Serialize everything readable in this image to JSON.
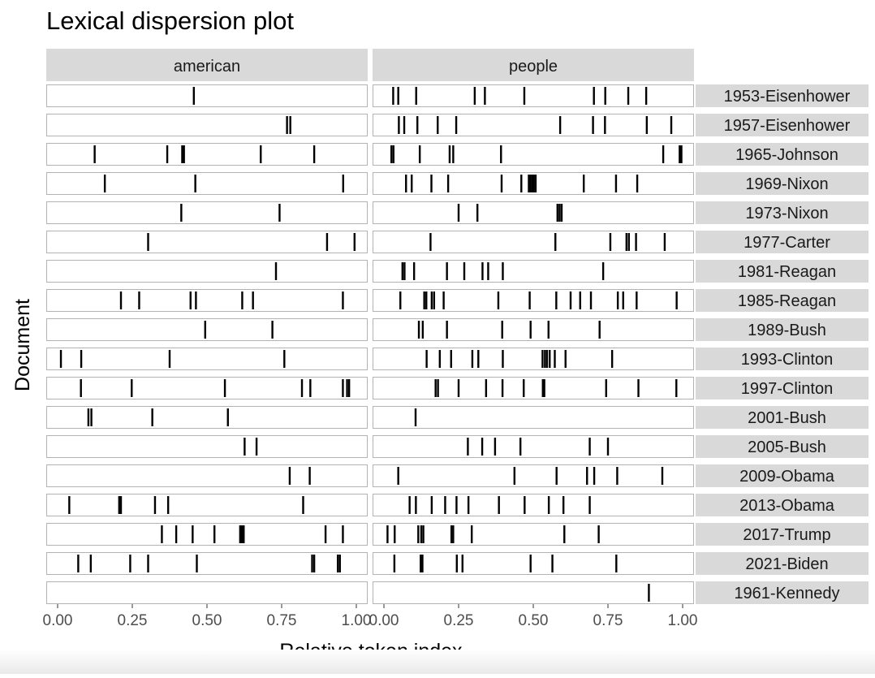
{
  "chart_data": {
    "type": "dispersion",
    "title": "Lexical dispersion plot",
    "xlabel": "Relative token index",
    "ylabel": "Document",
    "xlim": [
      0,
      1
    ],
    "x_ticks": [
      "0.00",
      "0.25",
      "0.50",
      "0.75",
      "1.00"
    ],
    "grid": false,
    "facets": [
      "american",
      "people"
    ],
    "documents": [
      {
        "name": "1953-Eisenhower",
        "american": [
          0.456
        ],
        "people": [
          0.031,
          0.048,
          0.108,
          0.304,
          0.338,
          0.47,
          0.703,
          0.741,
          0.818,
          0.878
        ]
      },
      {
        "name": "1957-Eisenhower",
        "american": [
          0.768,
          0.779
        ],
        "people": [
          0.05,
          0.068,
          0.112,
          0.18,
          0.242,
          0.59,
          0.7,
          0.74,
          0.88,
          0.962
        ]
      },
      {
        "name": "1965-Johnson",
        "american": [
          0.124,
          0.367,
          0.417,
          0.423,
          0.68,
          0.859
        ],
        "people": [
          0.025,
          0.032,
          0.12,
          0.22,
          0.232,
          0.392,
          0.935,
          0.99,
          0.996
        ]
      },
      {
        "name": "1969-Nixon",
        "american": [
          0.158,
          0.461,
          0.956
        ],
        "people": [
          0.074,
          0.093,
          0.159,
          0.215,
          0.394,
          0.46,
          0.485,
          0.491,
          0.497,
          0.502,
          0.508,
          0.669,
          0.777,
          0.848
        ]
      },
      {
        "name": "1973-Nixon",
        "american": [
          0.414,
          0.743
        ],
        "people": [
          0.25,
          0.313,
          0.581,
          0.588,
          0.595
        ]
      },
      {
        "name": "1977-Carter",
        "american": [
          0.303,
          0.902,
          0.994
        ],
        "people": [
          0.156,
          0.574,
          0.758,
          0.812,
          0.82,
          0.844,
          0.94
        ]
      },
      {
        "name": "1981-Reagan",
        "american": [
          0.731
        ],
        "people": [
          0.062,
          0.069,
          0.101,
          0.211,
          0.269,
          0.33,
          0.349,
          0.398,
          0.734
        ]
      },
      {
        "name": "1985-Reagan",
        "american": [
          0.212,
          0.273,
          0.445,
          0.463,
          0.618,
          0.654,
          0.955
        ],
        "people": [
          0.055,
          0.135,
          0.142,
          0.16,
          0.168,
          0.2,
          0.383,
          0.488,
          0.577,
          0.625,
          0.657,
          0.693,
          0.783,
          0.801,
          0.846,
          0.98
        ]
      },
      {
        "name": "1989-Bush",
        "american": [
          0.494,
          0.719
        ],
        "people": [
          0.117,
          0.13,
          0.211,
          0.396,
          0.491,
          0.551,
          0.722
        ]
      },
      {
        "name": "1993-Clinton",
        "american": [
          0.011,
          0.079,
          0.375,
          0.759
        ],
        "people": [
          0.143,
          0.187,
          0.225,
          0.296,
          0.316,
          0.398,
          0.531,
          0.539,
          0.546,
          0.555,
          0.572,
          0.608,
          0.764
        ]
      },
      {
        "name": "1997-Clinton",
        "american": [
          0.078,
          0.248,
          0.56,
          0.818,
          0.846,
          0.955,
          0.969,
          0.976
        ],
        "people": [
          0.173,
          0.181,
          0.25,
          0.342,
          0.397,
          0.468,
          0.532,
          0.537,
          0.744,
          0.852,
          0.979
        ]
      },
      {
        "name": "2001-Bush",
        "american": [
          0.103,
          0.113,
          0.317,
          0.57
        ],
        "people": [
          0.106
        ]
      },
      {
        "name": "2005-Bush",
        "american": [
          0.626,
          0.666
        ],
        "people": [
          0.281,
          0.329,
          0.372,
          0.457,
          0.689,
          0.75
        ]
      },
      {
        "name": "2009-Obama",
        "american": [
          0.777,
          0.844
        ],
        "people": [
          0.048,
          0.437,
          0.578,
          0.68,
          0.704,
          0.781,
          0.932
        ]
      },
      {
        "name": "2013-Obama",
        "american": [
          0.039,
          0.206,
          0.212,
          0.326,
          0.37,
          0.822
        ],
        "people": [
          0.086,
          0.107,
          0.16,
          0.205,
          0.243,
          0.283,
          0.385,
          0.471,
          0.552,
          0.601,
          0.689
        ]
      },
      {
        "name": "2017-Trump",
        "american": [
          0.349,
          0.397,
          0.452,
          0.525,
          0.611,
          0.616,
          0.62,
          0.623,
          0.897,
          0.955
        ],
        "people": [
          0.012,
          0.036,
          0.115,
          0.125,
          0.132,
          0.226,
          0.232,
          0.294,
          0.604,
          0.719
        ]
      },
      {
        "name": "2021-Biden",
        "american": [
          0.069,
          0.111,
          0.243,
          0.303,
          0.466,
          0.852,
          0.859,
          0.938,
          0.945
        ],
        "people": [
          0.035,
          0.123,
          0.129,
          0.244,
          0.263,
          0.491,
          0.564,
          0.778
        ]
      },
      {
        "name": "1961-Kennedy",
        "american": [],
        "people": [
          0.887
        ]
      }
    ]
  }
}
